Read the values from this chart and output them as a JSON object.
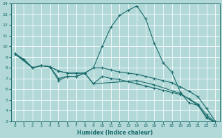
{
  "xlabel": "Humidex (Indice chaleur)",
  "bg_color": "#b2d8d8",
  "grid_color": "#ffffff",
  "line_color": "#1a6b6b",
  "xlim": [
    -0.5,
    23.5
  ],
  "ylim": [
    3,
    14
  ],
  "xticks": [
    0,
    1,
    2,
    3,
    4,
    5,
    6,
    7,
    8,
    9,
    10,
    11,
    12,
    13,
    14,
    15,
    16,
    17,
    18,
    19,
    20,
    21,
    22,
    23
  ],
  "yticks": [
    3,
    4,
    5,
    6,
    7,
    8,
    9,
    10,
    11,
    12,
    13,
    14
  ],
  "lines": [
    {
      "x": [
        0,
        1,
        2,
        3,
        4,
        5,
        6,
        7,
        8,
        9,
        10,
        11,
        12,
        13,
        14,
        15,
        16,
        17,
        18,
        19,
        20,
        21,
        22,
        23
      ],
      "y": [
        9.3,
        8.8,
        8.0,
        8.2,
        8.1,
        7.7,
        7.5,
        7.5,
        7.5,
        8.0,
        10.0,
        11.8,
        12.9,
        13.4,
        13.8,
        12.6,
        10.3,
        8.5,
        7.6,
        5.7,
        4.7,
        4.5,
        3.3,
        2.9
      ]
    },
    {
      "x": [
        0,
        1,
        2,
        3,
        4,
        5,
        6,
        7,
        8,
        9,
        10,
        11,
        12,
        13,
        14,
        15,
        16,
        17,
        18,
        19,
        20,
        21,
        22,
        23
      ],
      "y": [
        9.3,
        8.8,
        8.0,
        8.2,
        8.1,
        7.7,
        7.5,
        7.5,
        7.5,
        8.0,
        8.0,
        7.8,
        7.6,
        7.5,
        7.4,
        7.2,
        7.0,
        6.8,
        6.6,
        6.2,
        5.8,
        5.3,
        4.2,
        3.0
      ]
    },
    {
      "x": [
        0,
        2,
        3,
        4,
        5,
        6,
        7,
        8,
        9,
        10,
        11,
        12,
        13,
        14,
        15,
        16,
        17,
        18,
        19,
        20,
        21,
        22,
        23
      ],
      "y": [
        9.3,
        8.0,
        8.2,
        8.1,
        7.0,
        7.2,
        7.2,
        7.5,
        6.5,
        7.2,
        7.0,
        6.9,
        6.7,
        6.5,
        6.3,
        6.1,
        5.9,
        5.7,
        5.5,
        5.1,
        4.6,
        3.6,
        2.9
      ]
    },
    {
      "x": [
        0,
        2,
        3,
        4,
        5,
        6,
        7,
        8,
        9,
        14,
        16,
        19,
        21,
        22,
        23
      ],
      "y": [
        9.3,
        8.0,
        8.2,
        8.1,
        6.8,
        7.2,
        7.2,
        7.5,
        6.5,
        6.8,
        6.4,
        5.6,
        4.5,
        3.4,
        2.9
      ]
    }
  ]
}
